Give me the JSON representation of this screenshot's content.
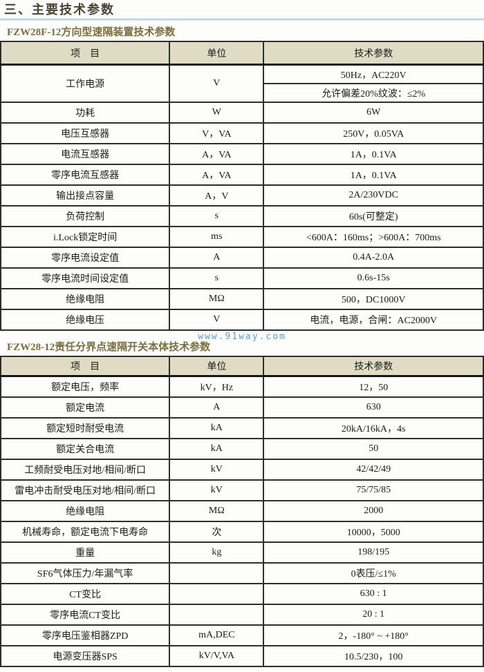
{
  "page": {
    "title": "三、主要技术参数",
    "watermark": "www.91way.com"
  },
  "colors": {
    "title_text": "#4a4530",
    "caption_text": "#7c6e3a",
    "header_bg": "#e0dcc3",
    "border": "#2e2e2e",
    "watermark_blue": "#56a0d6",
    "divider_blue": "#abccd7"
  },
  "table1": {
    "caption": "FZW28F-12方向型速隔装置技术参数",
    "headers": [
      "项　目",
      "单位",
      "技术参数"
    ],
    "power_row": {
      "item": "工作电源",
      "unit": "V",
      "value_line1": "50Hz，AC220V",
      "value_line2": "允许偏差20%纹波：≤2%"
    },
    "rows": [
      {
        "item": "功耗",
        "unit": "W",
        "value": "6W"
      },
      {
        "item": "电压互感器",
        "unit": "V，VA",
        "value": "250V，0.05VA"
      },
      {
        "item": "电流互感器",
        "unit": "A，VA",
        "value": "1A，0.1VA"
      },
      {
        "item": "零序电流互感器",
        "unit": "A，VA",
        "value": "1A，0.1VA"
      },
      {
        "item": "输出接点容量",
        "unit": "A，V",
        "value": "2A/230VDC"
      },
      {
        "item": "负荷控制",
        "unit": "s",
        "value": "60s(可整定)"
      },
      {
        "item": "i.Lock锁定时间",
        "unit": "ms",
        "value": "<600A：160ms；>600A：700ms"
      },
      {
        "item": "零序电流设定值",
        "unit": "A",
        "value": "0.4A-2.0A"
      },
      {
        "item": "零序电流时间设定值",
        "unit": "s",
        "value": "0.6s-15s"
      },
      {
        "item": "绝缘电阻",
        "unit": "MΩ",
        "value": "500，DC1000V"
      },
      {
        "item": "绝缘电压",
        "unit": "V",
        "value": "电流，电源，合闸：AC2000V"
      }
    ]
  },
  "table2": {
    "caption": "FZW28-12责任分界点速隔开关本体技术参数",
    "headers": [
      "项　目",
      "单位",
      "技术参数"
    ],
    "rows": [
      {
        "item": "额定电压，频率",
        "unit": "kV，Hz",
        "value": "12，50"
      },
      {
        "item": "额定电流",
        "unit": "A",
        "value": "630"
      },
      {
        "item": "额定短时耐受电流",
        "unit": "kA",
        "value": "20kA/16kA，4s"
      },
      {
        "item": "额定关合电流",
        "unit": "kA",
        "value": "50"
      },
      {
        "item": "工频耐受电压对地/相间/断口",
        "unit": "kV",
        "value": "42/42/49"
      },
      {
        "item": "雷电冲击耐受电压对地/相间/断口",
        "unit": "kV",
        "value": "75/75/85"
      },
      {
        "item": "绝缘电阻",
        "unit": "MΩ",
        "value": "2000"
      },
      {
        "item": "机械寿命，额定电流下电寿命",
        "unit": "次",
        "value": "10000，5000"
      },
      {
        "item": "重量",
        "unit": "kg",
        "value": "198/195"
      },
      {
        "item": "SF6气体压力/年漏气率",
        "unit": "",
        "value": "0表压/≤1%"
      },
      {
        "item": "CT变比",
        "unit": "",
        "value": "630 : 1"
      },
      {
        "item": "零序电流CT变比",
        "unit": "",
        "value": "20 : 1"
      },
      {
        "item": "零序电压鉴相器ZPD",
        "unit": "mA,DEC",
        "value": "2，-180° ~ +180°"
      },
      {
        "item": "电源变压器SPS",
        "unit": "kV/V,VA",
        "value": "10.5/230，100"
      }
    ]
  }
}
